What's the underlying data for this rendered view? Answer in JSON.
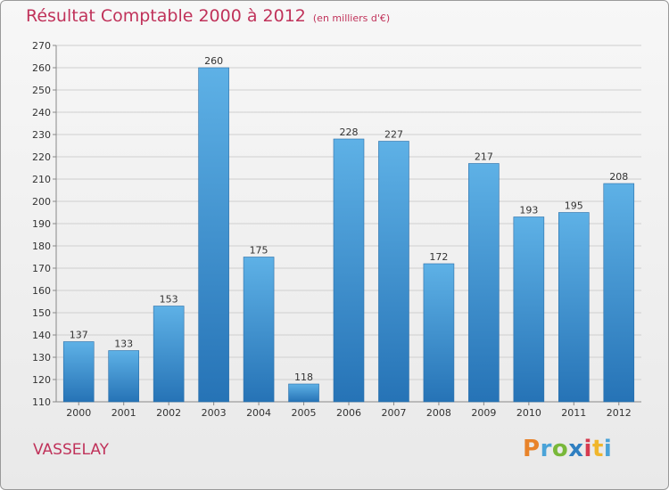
{
  "header": {
    "title": "Résultat Comptable 2000 à 2012",
    "subtitle": "(en milliers d'€)"
  },
  "footer": {
    "place": "VASSELAY",
    "brand_letters": [
      "P",
      "r",
      "o",
      "x",
      "i",
      "t",
      "i"
    ]
  },
  "colors": {
    "bar_top": "#5eb1e6",
    "bar_bottom": "#2673b6",
    "title": "#c0325a",
    "grid": "#cfcfcf"
  },
  "chart_data": {
    "type": "bar",
    "title": "Résultat Comptable 2000 à 2012",
    "subtitle": "(en milliers d'€)",
    "xlabel": "",
    "ylabel": "",
    "categories": [
      "2000",
      "2001",
      "2002",
      "2003",
      "2004",
      "2005",
      "2006",
      "2007",
      "2008",
      "2009",
      "2010",
      "2011",
      "2012"
    ],
    "values": [
      137,
      133,
      153,
      260,
      175,
      118,
      228,
      227,
      172,
      217,
      193,
      195,
      208
    ],
    "ylim": [
      110,
      270
    ],
    "yticks": [
      110,
      120,
      130,
      140,
      150,
      160,
      170,
      180,
      190,
      200,
      210,
      220,
      230,
      240,
      250,
      260,
      270
    ],
    "grid": true
  }
}
